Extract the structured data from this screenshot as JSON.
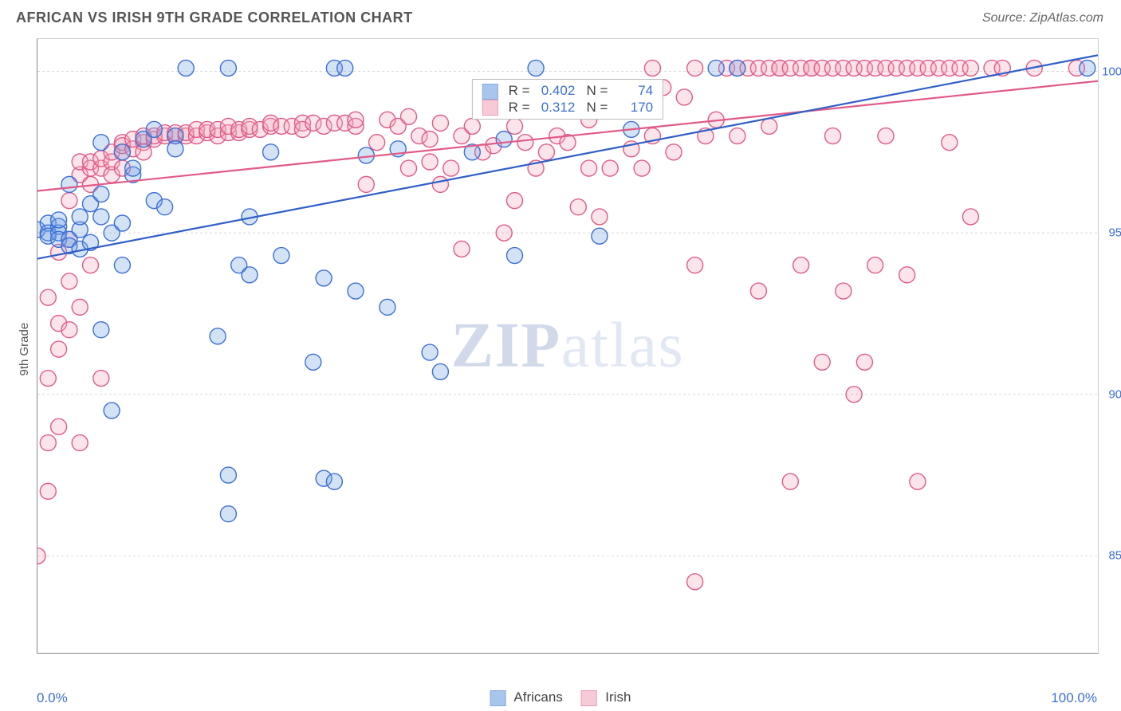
{
  "title": "AFRICAN VS IRISH 9TH GRADE CORRELATION CHART",
  "source": "Source: ZipAtlas.com",
  "ylabel": "9th Grade",
  "watermark_a": "ZIP",
  "watermark_b": "atlas",
  "chart": {
    "type": "scatter",
    "background": "#ffffff",
    "grid_color": "#d8d8d8",
    "axis_color": "#888888",
    "xlim": [
      0,
      100
    ],
    "ylim": [
      82,
      101
    ],
    "x_ticks": [
      0,
      10,
      20,
      30,
      40,
      50,
      60,
      70,
      80,
      90,
      100
    ],
    "x_tick_labels_shown": {
      "0": "0.0%",
      "100": "100.0%"
    },
    "y_ticks": [
      85,
      90,
      95,
      100
    ],
    "y_tick_labels": {
      "85": "85.0%",
      "90": "90.0%",
      "95": "95.0%",
      "100": "100.0%"
    },
    "marker_radius": 10,
    "marker_stroke_width": 1.4,
    "marker_fill_opacity": 0.3,
    "line_width": 2.2,
    "series": {
      "africans": {
        "label": "Africans",
        "color": "#6fa0e0",
        "stroke": "#3b6fd6",
        "line_color": "#2f5fc8",
        "R": "0.402",
        "N": "74",
        "trend": {
          "x0": 0,
          "y0": 94.2,
          "x1": 100,
          "y1": 100.5
        },
        "points": [
          [
            0,
            95.1
          ],
          [
            1,
            95.3
          ],
          [
            1,
            95.0
          ],
          [
            1,
            94.9
          ],
          [
            2,
            95.2
          ],
          [
            2,
            95.0
          ],
          [
            2,
            94.8
          ],
          [
            2,
            95.4
          ],
          [
            3,
            94.8
          ],
          [
            3,
            94.6
          ],
          [
            3,
            96.5
          ],
          [
            4,
            94.5
          ],
          [
            4,
            95.1
          ],
          [
            4,
            95.5
          ],
          [
            5,
            94.7
          ],
          [
            5,
            95.9
          ],
          [
            6,
            95.5
          ],
          [
            6,
            96.2
          ],
          [
            6,
            97.8
          ],
          [
            6,
            92.0
          ],
          [
            7,
            95.0
          ],
          [
            7,
            89.5
          ],
          [
            8,
            97.5
          ],
          [
            8,
            95.3
          ],
          [
            8,
            94.0
          ],
          [
            9,
            96.8
          ],
          [
            9,
            97.0
          ],
          [
            10,
            97.9
          ],
          [
            11,
            98.2
          ],
          [
            11,
            96.0
          ],
          [
            12,
            95.8
          ],
          [
            13,
            98.0
          ],
          [
            13,
            97.6
          ],
          [
            14,
            100.1
          ],
          [
            17,
            91.8
          ],
          [
            18,
            100.1
          ],
          [
            18,
            87.5
          ],
          [
            18,
            86.3
          ],
          [
            19,
            94.0
          ],
          [
            20,
            93.7
          ],
          [
            20,
            95.5
          ],
          [
            22,
            97.5
          ],
          [
            23,
            94.3
          ],
          [
            26,
            91.0
          ],
          [
            27,
            87.4
          ],
          [
            27,
            93.6
          ],
          [
            28,
            87.3
          ],
          [
            28,
            100.1
          ],
          [
            29,
            100.1
          ],
          [
            30,
            93.2
          ],
          [
            31,
            97.4
          ],
          [
            33,
            92.7
          ],
          [
            34,
            97.6
          ],
          [
            37,
            91.3
          ],
          [
            38,
            90.7
          ],
          [
            41,
            97.5
          ],
          [
            44,
            97.9
          ],
          [
            45,
            94.3
          ],
          [
            47,
            100.1
          ],
          [
            53,
            94.9
          ],
          [
            56,
            98.2
          ],
          [
            64,
            100.1
          ],
          [
            66,
            100.1
          ],
          [
            99,
            100.1
          ]
        ]
      },
      "irish": {
        "label": "Irish",
        "color": "#f3a8bd",
        "stroke": "#e05a87",
        "line_color": "#e05a87",
        "R": "0.312",
        "N": "170",
        "trend": {
          "x0": 0,
          "y0": 96.3,
          "x1": 100,
          "y1": 99.7
        },
        "points": [
          [
            0,
            85.0
          ],
          [
            1,
            87.0
          ],
          [
            1,
            88.5
          ],
          [
            1,
            90.5
          ],
          [
            1,
            93.0
          ],
          [
            2,
            92.2
          ],
          [
            2,
            91.4
          ],
          [
            2,
            89.0
          ],
          [
            2,
            94.4
          ],
          [
            3,
            92.0
          ],
          [
            3,
            94.8
          ],
          [
            3,
            93.5
          ],
          [
            3,
            96.0
          ],
          [
            4,
            88.5
          ],
          [
            4,
            92.7
          ],
          [
            4,
            96.8
          ],
          [
            4,
            97.2
          ],
          [
            5,
            94.0
          ],
          [
            5,
            96.5
          ],
          [
            5,
            97.0
          ],
          [
            5,
            97.2
          ],
          [
            6,
            97.0
          ],
          [
            6,
            97.3
          ],
          [
            6,
            90.5
          ],
          [
            7,
            97.2
          ],
          [
            7,
            97.5
          ],
          [
            7,
            96.8
          ],
          [
            8,
            97.0
          ],
          [
            8,
            97.5
          ],
          [
            8,
            97.8
          ],
          [
            8,
            97.7
          ],
          [
            9,
            97.6
          ],
          [
            9,
            97.9
          ],
          [
            10,
            97.8
          ],
          [
            10,
            98.0
          ],
          [
            10,
            97.5
          ],
          [
            11,
            97.9
          ],
          [
            11,
            98.0
          ],
          [
            12,
            98.0
          ],
          [
            12,
            98.1
          ],
          [
            13,
            98.0
          ],
          [
            13,
            98.1
          ],
          [
            14,
            98.0
          ],
          [
            14,
            98.1
          ],
          [
            15,
            98.0
          ],
          [
            15,
            98.2
          ],
          [
            16,
            98.1
          ],
          [
            16,
            98.2
          ],
          [
            17,
            98.0
          ],
          [
            17,
            98.2
          ],
          [
            18,
            98.1
          ],
          [
            18,
            98.3
          ],
          [
            19,
            98.1
          ],
          [
            19,
            98.2
          ],
          [
            20,
            98.2
          ],
          [
            20,
            98.3
          ],
          [
            21,
            98.2
          ],
          [
            22,
            98.3
          ],
          [
            22,
            98.4
          ],
          [
            23,
            98.3
          ],
          [
            24,
            98.3
          ],
          [
            25,
            98.4
          ],
          [
            25,
            98.2
          ],
          [
            26,
            98.4
          ],
          [
            27,
            98.3
          ],
          [
            28,
            98.4
          ],
          [
            29,
            98.4
          ],
          [
            30,
            98.3
          ],
          [
            30,
            98.5
          ],
          [
            31,
            96.5
          ],
          [
            32,
            97.8
          ],
          [
            33,
            98.5
          ],
          [
            34,
            98.3
          ],
          [
            35,
            97.0
          ],
          [
            35,
            98.6
          ],
          [
            36,
            98.0
          ],
          [
            37,
            97.9
          ],
          [
            37,
            97.2
          ],
          [
            38,
            96.5
          ],
          [
            38,
            98.4
          ],
          [
            39,
            97.0
          ],
          [
            40,
            94.5
          ],
          [
            40,
            98.0
          ],
          [
            41,
            98.3
          ],
          [
            42,
            97.5
          ],
          [
            43,
            97.7
          ],
          [
            44,
            95.0
          ],
          [
            45,
            96.0
          ],
          [
            45,
            98.3
          ],
          [
            46,
            97.8
          ],
          [
            47,
            97.0
          ],
          [
            48,
            97.5
          ],
          [
            49,
            98.0
          ],
          [
            50,
            97.8
          ],
          [
            51,
            95.8
          ],
          [
            52,
            97.0
          ],
          [
            52,
            98.5
          ],
          [
            53,
            95.5
          ],
          [
            54,
            97.0
          ],
          [
            55,
            99.0
          ],
          [
            56,
            97.6
          ],
          [
            57,
            97.0
          ],
          [
            58,
            98.0
          ],
          [
            58,
            100.1
          ],
          [
            59,
            99.5
          ],
          [
            60,
            97.5
          ],
          [
            61,
            99.2
          ],
          [
            62,
            100.1
          ],
          [
            62,
            94.0
          ],
          [
            62,
            84.2
          ],
          [
            63,
            98.0
          ],
          [
            64,
            98.5
          ],
          [
            65,
            100.1
          ],
          [
            66,
            98.0
          ],
          [
            66,
            100.1
          ],
          [
            67,
            100.1
          ],
          [
            68,
            100.1
          ],
          [
            68,
            93.2
          ],
          [
            69,
            98.3
          ],
          [
            69,
            100.1
          ],
          [
            70,
            100.1
          ],
          [
            70,
            100.1
          ],
          [
            71,
            100.1
          ],
          [
            71,
            87.3
          ],
          [
            72,
            100.1
          ],
          [
            72,
            94.0
          ],
          [
            73,
            100.1
          ],
          [
            73,
            100.1
          ],
          [
            74,
            100.1
          ],
          [
            74,
            91.0
          ],
          [
            75,
            100.1
          ],
          [
            75,
            98.0
          ],
          [
            76,
            100.1
          ],
          [
            76,
            93.2
          ],
          [
            77,
            100.1
          ],
          [
            77,
            90.0
          ],
          [
            78,
            100.1
          ],
          [
            78,
            91.0
          ],
          [
            79,
            100.1
          ],
          [
            79,
            94.0
          ],
          [
            80,
            100.1
          ],
          [
            80,
            98.0
          ],
          [
            81,
            100.1
          ],
          [
            82,
            100.1
          ],
          [
            82,
            93.7
          ],
          [
            83,
            100.1
          ],
          [
            83,
            87.3
          ],
          [
            84,
            100.1
          ],
          [
            85,
            100.1
          ],
          [
            86,
            100.1
          ],
          [
            86,
            97.8
          ],
          [
            87,
            100.1
          ],
          [
            88,
            100.1
          ],
          [
            88,
            95.5
          ],
          [
            90,
            100.1
          ],
          [
            91,
            100.1
          ],
          [
            94,
            100.1
          ],
          [
            98,
            100.1
          ]
        ]
      }
    }
  },
  "legend_text": {
    "R": "R =",
    "N": "N ="
  }
}
